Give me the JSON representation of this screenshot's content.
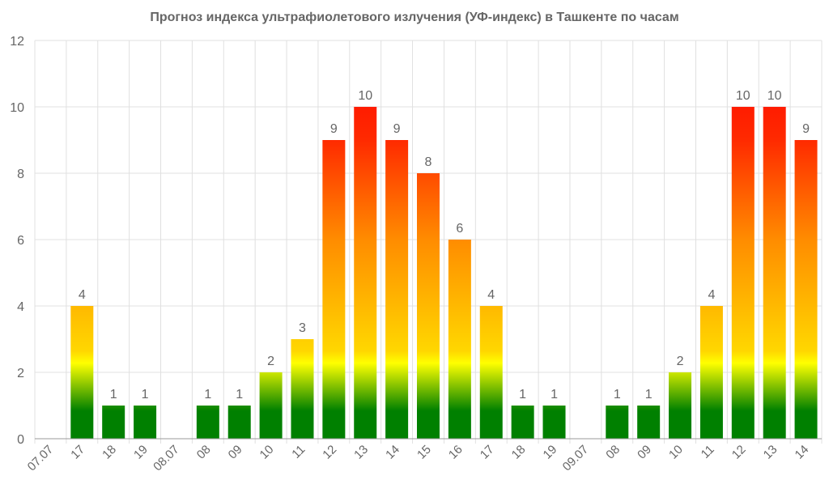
{
  "chart_data": {
    "type": "bar",
    "title": "Прогноз индекса ультрафиолетового излучения (УФ-индекс) в Ташкенте по часам",
    "xlabel": "",
    "ylabel": "",
    "ylim": [
      0,
      12
    ],
    "yticks": [
      "0",
      "2",
      "4",
      "6",
      "8",
      "10",
      "12"
    ],
    "grid": true,
    "categories": [
      "07.07",
      "17",
      "18",
      "19",
      "08.07",
      "08",
      "09",
      "10",
      "11",
      "12",
      "13",
      "14",
      "15",
      "16",
      "17",
      "18",
      "19",
      "09.07",
      "08",
      "09",
      "10",
      "11",
      "12",
      "13",
      "14"
    ],
    "values": [
      0,
      4,
      1,
      1,
      0,
      1,
      1,
      2,
      3,
      9,
      10,
      9,
      8,
      6,
      4,
      1,
      1,
      0,
      1,
      1,
      2,
      4,
      10,
      10,
      9
    ],
    "data_labels": [
      "",
      "4",
      "1",
      "1",
      "",
      "1",
      "1",
      "2",
      "3",
      "9",
      "10",
      "9",
      "8",
      "6",
      "4",
      "1",
      "1",
      "",
      "1",
      "1",
      "2",
      "4",
      "10",
      "10",
      "9"
    ],
    "colors": {
      "low": "#008000",
      "mid": "#ffff00",
      "mid_high": "#ff8c00",
      "high": "#ff0000",
      "grid": "#e0e0e0",
      "axis": "#666666"
    }
  }
}
